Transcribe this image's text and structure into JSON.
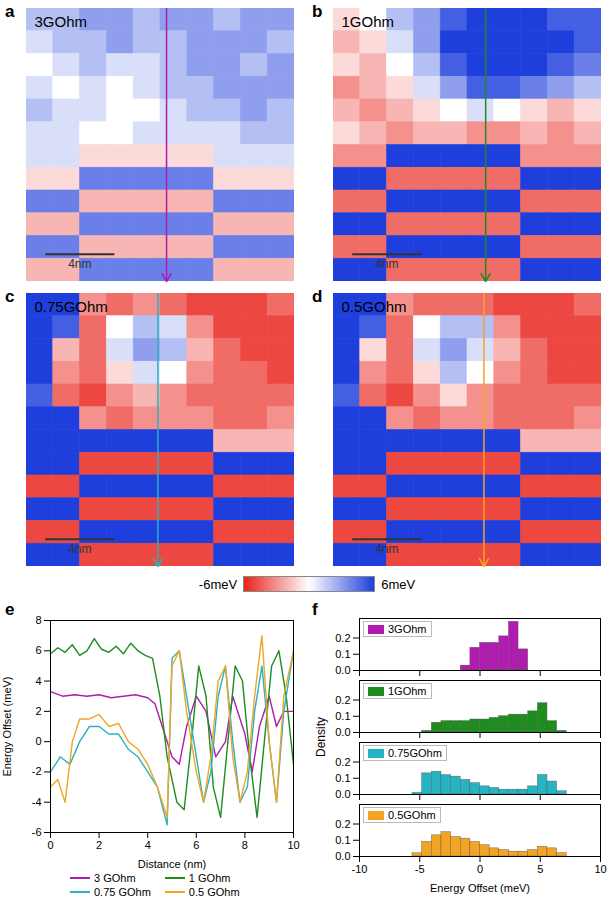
{
  "chart_data": [
    {
      "type": "heatmap",
      "panel": "a",
      "title": "3GOhm",
      "xlim": [
        0,
        15.5
      ],
      "ylim": [
        0,
        16.6
      ],
      "cut_x": 8.1,
      "color": "#b01bb0",
      "scale_bar": {
        "label": "4nm",
        "length": 4
      },
      "cells": [
        [
          2,
          2,
          3,
          3,
          2,
          3,
          3,
          2,
          3,
          3
        ],
        [
          1,
          2,
          2,
          3,
          2,
          2,
          3,
          3,
          3,
          2
        ],
        [
          0,
          1,
          2,
          1,
          1,
          2,
          3,
          3,
          2,
          3
        ],
        [
          1,
          0,
          1,
          0,
          1,
          2,
          2,
          3,
          3,
          3
        ],
        [
          2,
          1,
          1,
          0,
          0,
          1,
          2,
          2,
          3,
          2
        ],
        [
          1,
          1,
          0,
          0,
          1,
          1,
          1,
          1,
          2,
          2
        ],
        [
          1,
          1,
          -1,
          -1,
          -1,
          -1,
          -1,
          1,
          1,
          1
        ],
        [
          -1,
          -1,
          4,
          4,
          4,
          4,
          4,
          -1,
          -1,
          -1
        ],
        [
          4,
          4,
          -2,
          -2,
          -2,
          -2,
          -2,
          4,
          4,
          4
        ],
        [
          -2,
          -2,
          4,
          4,
          4,
          4,
          4,
          -2,
          -2,
          -2
        ],
        [
          4,
          4,
          -2,
          -2,
          -2,
          -2,
          -2,
          4,
          4,
          4
        ],
        [
          -2,
          -2,
          4,
          4,
          4,
          4,
          4,
          -2,
          -2,
          -2
        ]
      ]
    },
    {
      "type": "heatmap",
      "panel": "b",
      "title": "1GOhm",
      "xlim": [
        0,
        15.5
      ],
      "ylim": [
        0,
        16.6
      ],
      "cut_x": 8.8,
      "color": "#1e8c1e",
      "scale_bar": {
        "label": "4nm",
        "length": 4
      },
      "cells": [
        [
          -1,
          0,
          2,
          3,
          5,
          6,
          6,
          6,
          5,
          5
        ],
        [
          -2,
          -1,
          1,
          3,
          6,
          6,
          6,
          6,
          6,
          5
        ],
        [
          -1,
          -2,
          0,
          2,
          5,
          6,
          6,
          6,
          5,
          4
        ],
        [
          -3,
          -2,
          -1,
          1,
          3,
          5,
          5,
          4,
          3,
          2
        ],
        [
          -2,
          -3,
          -2,
          -1,
          0,
          1,
          0,
          -1,
          -2,
          -1
        ],
        [
          -1,
          -2,
          -3,
          -2,
          -2,
          -3,
          -3,
          -2,
          -3,
          -2
        ],
        [
          -3,
          -3,
          6,
          6,
          6,
          6,
          6,
          -3,
          -3,
          -3
        ],
        [
          6,
          6,
          -4,
          -4,
          -4,
          -4,
          -4,
          6,
          6,
          6
        ],
        [
          -4,
          -4,
          6,
          6,
          6,
          6,
          6,
          -4,
          -4,
          -4
        ],
        [
          6,
          6,
          -4,
          -4,
          -4,
          -4,
          -4,
          6,
          6,
          6
        ],
        [
          -4,
          -4,
          6,
          6,
          6,
          6,
          6,
          -4,
          -4,
          -4
        ],
        [
          6,
          6,
          -4,
          -4,
          -4,
          -4,
          -4,
          6,
          6,
          6
        ]
      ]
    },
    {
      "type": "heatmap",
      "panel": "c",
      "title": "0.75GOhm",
      "xlim": [
        0,
        15.5
      ],
      "ylim": [
        0,
        16.6
      ],
      "cut_x": 7.6,
      "color": "#26b3c3",
      "scale_bar": {
        "label": "4nm",
        "length": 4
      },
      "cells": [
        [
          6,
          6,
          -3,
          -4,
          -3,
          -4,
          -5,
          -5,
          -5,
          -4
        ],
        [
          6,
          5,
          -4,
          0,
          2,
          1,
          -3,
          -5,
          -5,
          -5
        ],
        [
          6,
          -2,
          -4,
          1,
          3,
          2,
          -2,
          -4,
          -5,
          -5
        ],
        [
          6,
          -3,
          -4,
          -1,
          1,
          0,
          -3,
          -4,
          -4,
          -5
        ],
        [
          5,
          -4,
          -5,
          -3,
          -2,
          -3,
          -4,
          -4,
          -4,
          -4
        ],
        [
          6,
          6,
          -3,
          -4,
          -3,
          -3,
          -3,
          -4,
          -4,
          -3
        ],
        [
          6,
          6,
          6,
          6,
          6,
          6,
          6,
          -2,
          -2,
          -2
        ],
        [
          6,
          6,
          -5,
          -5,
          -5,
          -5,
          -5,
          6,
          6,
          6
        ],
        [
          -5,
          -5,
          6,
          6,
          6,
          6,
          6,
          -5,
          -5,
          -5
        ],
        [
          6,
          6,
          -5,
          -5,
          -5,
          -5,
          -5,
          6,
          6,
          6
        ],
        [
          -5,
          -5,
          6,
          6,
          6,
          6,
          6,
          -5,
          -5,
          -5
        ],
        [
          6,
          6,
          -5,
          -5,
          -5,
          -5,
          -5,
          6,
          6,
          6
        ]
      ]
    },
    {
      "type": "heatmap",
      "panel": "d",
      "title": "0.5GOhm",
      "xlim": [
        0,
        15.5
      ],
      "ylim": [
        0,
        16.6
      ],
      "cut_x": 8.7,
      "color": "#f3a424",
      "scale_bar": {
        "label": "4nm",
        "length": 4
      },
      "cells": [
        [
          6,
          6,
          -3,
          -4,
          -4,
          -4,
          -5,
          -5,
          -5,
          -4
        ],
        [
          6,
          5,
          -4,
          0,
          2,
          2,
          -3,
          -5,
          -5,
          -5
        ],
        [
          6,
          -1,
          -4,
          1,
          3,
          1,
          -2,
          -4,
          -5,
          -5
        ],
        [
          6,
          -3,
          -4,
          -1,
          2,
          0,
          -3,
          -4,
          -5,
          -5
        ],
        [
          5,
          -4,
          -5,
          -3,
          -1,
          -3,
          -4,
          -4,
          -4,
          -4
        ],
        [
          6,
          6,
          -3,
          -4,
          -3,
          -3,
          -4,
          -4,
          -4,
          -3
        ],
        [
          6,
          6,
          6,
          6,
          6,
          6,
          6,
          -2,
          -2,
          -2
        ],
        [
          6,
          6,
          -5,
          -5,
          -5,
          -5,
          -5,
          6,
          6,
          6
        ],
        [
          -5,
          -5,
          6,
          6,
          6,
          6,
          6,
          -5,
          -5,
          -5
        ],
        [
          6,
          6,
          -5,
          -5,
          -5,
          -5,
          -5,
          6,
          6,
          6
        ],
        [
          -5,
          -5,
          6,
          6,
          6,
          6,
          6,
          -5,
          -5,
          -5
        ],
        [
          6,
          6,
          -5,
          -5,
          -5,
          -5,
          -5,
          6,
          6,
          6
        ]
      ]
    },
    {
      "type": "colorbar",
      "range": [
        -6,
        6
      ],
      "labels": [
        "-6meV",
        "6meV"
      ]
    },
    {
      "type": "line",
      "panel": "e",
      "xlabel": "Distance (nm)",
      "ylabel": "Energy Offset (meV)",
      "xlim": [
        0,
        10
      ],
      "xticks": [
        0,
        2,
        4,
        6,
        8,
        10
      ],
      "ylim": [
        -6,
        8
      ],
      "yticks": [
        -6,
        -4,
        -2,
        0,
        2,
        4,
        6,
        8
      ],
      "legend": "below",
      "series": [
        {
          "name": "3 GOhm",
          "color": "#b01bb0",
          "x": [
            0,
            0.5,
            1,
            1.5,
            2,
            2.5,
            3,
            3.5,
            4,
            4.3,
            4.6,
            5.0,
            5.3,
            5.6,
            6.0,
            6.4,
            6.8,
            7.2,
            7.5,
            8.0,
            8.3,
            8.6,
            9.0,
            9.3,
            9.6,
            10
          ],
          "values": [
            3.3,
            3.0,
            3.1,
            3.0,
            3.1,
            2.9,
            3.0,
            3.1,
            2.9,
            2.5,
            1.0,
            -1.0,
            -1.5,
            1.0,
            3.0,
            2.0,
            -1.0,
            0.0,
            3.0,
            0.5,
            -2.0,
            1.0,
            3.0,
            1.0,
            2.0,
            2.0
          ]
        },
        {
          "name": "1 GOhm",
          "color": "#1e8c1e",
          "x": [
            0,
            0.3,
            0.6,
            0.9,
            1.2,
            1.5,
            1.8,
            2.1,
            2.4,
            2.7,
            3.0,
            3.3,
            3.6,
            3.9,
            4.2,
            4.5,
            4.8,
            5.2,
            5.5,
            5.8,
            6.1,
            6.4,
            6.7,
            7.0,
            7.3,
            7.6,
            7.9,
            8.2,
            8.5,
            8.8,
            9.1,
            9.4,
            9.7,
            10
          ],
          "values": [
            5.8,
            6.2,
            5.9,
            6.4,
            5.7,
            6.0,
            6.8,
            6.1,
            5.9,
            6.3,
            5.8,
            6.5,
            6.0,
            5.7,
            5.5,
            3.0,
            -1.0,
            -4.0,
            -4.5,
            0.0,
            5.0,
            3.0,
            -3.0,
            -5.0,
            0.0,
            5.0,
            4.0,
            -1.0,
            -5.0,
            0.0,
            5.0,
            6.0,
            3.0,
            -1.5
          ]
        },
        {
          "name": "0.75 GOhm",
          "color": "#26b3c3",
          "x": [
            0,
            0.4,
            0.8,
            1.2,
            1.6,
            2.0,
            2.4,
            2.8,
            3.2,
            3.6,
            4.0,
            4.4,
            4.8,
            5.0,
            5.3,
            5.6,
            6.0,
            6.3,
            6.6,
            6.9,
            7.2,
            7.5,
            7.8,
            8.1,
            8.4,
            8.7,
            9.0,
            9.3,
            9.6,
            10
          ],
          "values": [
            -2,
            -1,
            -1.5,
            0,
            1,
            1,
            0.5,
            0.5,
            -0.5,
            -1,
            -2,
            -3,
            -5.5,
            5.5,
            6,
            3,
            -1,
            -4,
            -2,
            3,
            5,
            0,
            -4,
            -3,
            2,
            5,
            0,
            -4,
            2,
            6
          ]
        },
        {
          "name": "0.5 GOhm",
          "color": "#f3a424",
          "x": [
            0,
            0.3,
            0.6,
            0.9,
            1.2,
            1.6,
            2.0,
            2.4,
            2.8,
            3.2,
            3.6,
            4.0,
            4.4,
            4.8,
            5.0,
            5.3,
            5.6,
            6.0,
            6.3,
            6.6,
            6.9,
            7.2,
            7.5,
            7.8,
            8.1,
            8.4,
            8.7,
            9.0,
            9.3,
            9.6,
            10
          ],
          "values": [
            -3,
            -2.5,
            -4,
            0,
            1.5,
            1.5,
            1.8,
            1.0,
            1.2,
            0,
            -0.5,
            -1.5,
            -3,
            -5,
            5,
            6,
            2,
            -2,
            -4,
            -1,
            4,
            5,
            -1,
            -4,
            -2,
            3,
            7,
            0,
            -4,
            3,
            6
          ]
        }
      ]
    },
    {
      "type": "histogram",
      "panel": "f",
      "name": "3GOhm",
      "color": "#b01bb0",
      "ylabel": "Density",
      "tick_labels": "y",
      "xlim": [
        -10,
        10
      ],
      "xticks": [
        -10,
        -5,
        0,
        5,
        10
      ],
      "ylim": [
        0,
        0.32
      ],
      "yticks": [
        {
          "value": 0,
          "label": "0.0"
        },
        {
          "value": 0.1,
          "label": "0.1"
        },
        {
          "value": 0.2,
          "label": "0.2"
        }
      ],
      "bins": [
        -5.6,
        -4.8,
        -4.0,
        -3.2,
        -2.4,
        -1.6,
        -0.8,
        0,
        0.8,
        1.6,
        2.4,
        3.2,
        4.0,
        4.8,
        5.6,
        6.4,
        7.2
      ],
      "counts": [
        0,
        0,
        0,
        0,
        0,
        0.03,
        0.14,
        0.17,
        0.17,
        0.21,
        0.3,
        0.13,
        0,
        0,
        0,
        0
      ]
    },
    {
      "type": "histogram",
      "name": "1GOhm",
      "color": "#1e8c1e",
      "tick_labels": "y",
      "xlim": [
        -10,
        10
      ],
      "xticks": [
        -10,
        -5,
        0,
        5,
        10
      ],
      "ylim": [
        0,
        0.32
      ],
      "yticks": [
        {
          "value": 0,
          "label": "0.0"
        },
        {
          "value": 0.1,
          "label": "0.1"
        },
        {
          "value": 0.2,
          "label": "0.2"
        }
      ],
      "bins": [
        -5.6,
        -4.8,
        -4.0,
        -3.2,
        -2.4,
        -1.6,
        -0.8,
        0,
        0.8,
        1.6,
        2.4,
        3.2,
        4.0,
        4.8,
        5.6,
        6.4,
        7.2
      ],
      "counts": [
        0,
        0.01,
        0.06,
        0.07,
        0.07,
        0.07,
        0.08,
        0.08,
        0.09,
        0.1,
        0.11,
        0.11,
        0.13,
        0.18,
        0.07,
        0.01
      ]
    },
    {
      "type": "histogram",
      "name": "0.75GOhm",
      "color": "#26b3c3",
      "tick_labels": "y",
      "xlim": [
        -10,
        10
      ],
      "xticks": [
        -10,
        -5,
        0,
        5,
        10
      ],
      "ylim": [
        0,
        0.32
      ],
      "yticks": [
        {
          "value": 0,
          "label": "0.0"
        },
        {
          "value": 0.1,
          "label": "0.1"
        },
        {
          "value": 0.2,
          "label": "0.2"
        }
      ],
      "bins": [
        -5.6,
        -4.8,
        -4.0,
        -3.2,
        -2.4,
        -1.6,
        -0.8,
        0,
        0.8,
        1.6,
        2.4,
        3.2,
        4.0,
        4.8,
        5.6,
        6.4,
        7.2
      ],
      "counts": [
        0.01,
        0.13,
        0.14,
        0.12,
        0.11,
        0.09,
        0.07,
        0.05,
        0.04,
        0.03,
        0.03,
        0.03,
        0.05,
        0.12,
        0.08,
        0.02
      ]
    },
    {
      "type": "histogram",
      "name": "0.5GOhm",
      "color": "#f3a424",
      "xlabel": "Energy Offset (meV)",
      "xlim": [
        -10,
        10
      ],
      "xticks": [
        -10,
        -5,
        0,
        5,
        10
      ],
      "ylim": [
        0,
        0.32
      ],
      "yticks": [
        {
          "value": 0,
          "label": "0.0"
        },
        {
          "value": 0.1,
          "label": "0.1"
        },
        {
          "value": 0.2,
          "label": "0.2"
        }
      ],
      "bins": [
        -5.6,
        -4.8,
        -4.0,
        -3.2,
        -2.4,
        -1.6,
        -0.8,
        0,
        0.8,
        1.6,
        2.4,
        3.2,
        4.0,
        4.8,
        5.6,
        6.4,
        7.2
      ],
      "counts": [
        0.02,
        0.09,
        0.13,
        0.15,
        0.12,
        0.11,
        0.09,
        0.07,
        0.05,
        0.04,
        0.03,
        0.03,
        0.04,
        0.06,
        0.05,
        0.02
      ]
    }
  ]
}
